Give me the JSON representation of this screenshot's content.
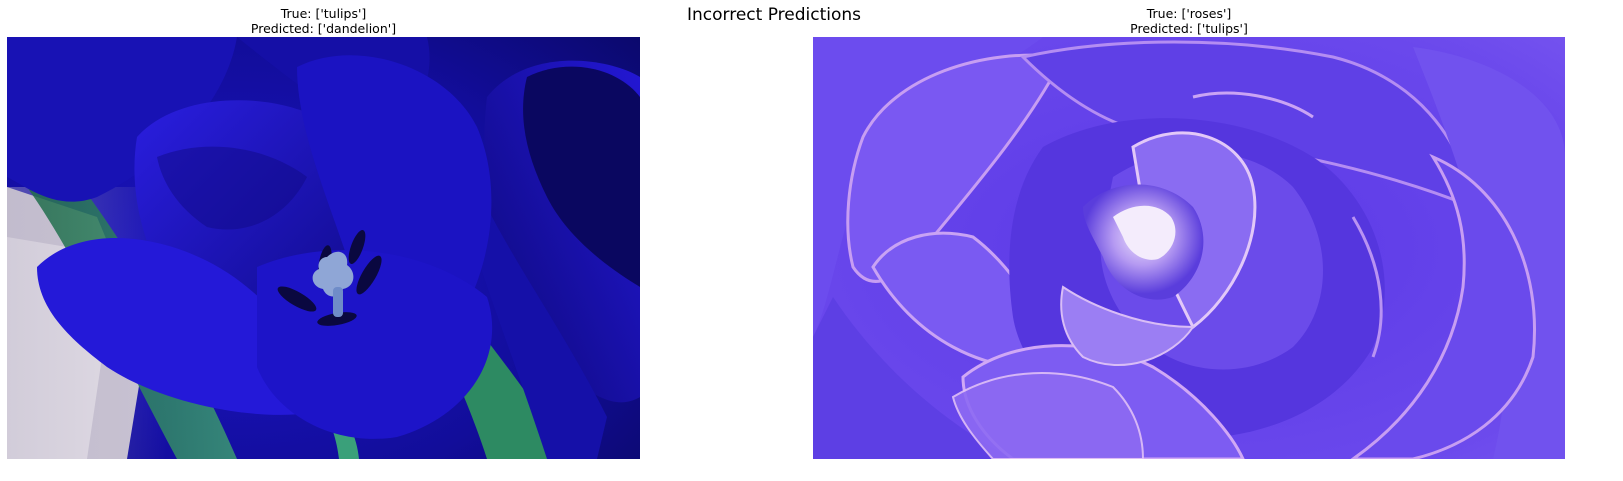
{
  "figure": {
    "suptitle": "Incorrect Predictions"
  },
  "panels": [
    {
      "true_label": "True: ['tulips']",
      "predicted_label": "Predicted: ['dandelion']",
      "image": {
        "subject": "tulip close-up",
        "dominant_colors": [
          "#1a12c8",
          "#0d0a7a",
          "#2a7a5a",
          "#c9c4d6"
        ]
      }
    },
    {
      "true_label": "True: ['roses']",
      "predicted_label": "Predicted: ['tulips']",
      "image": {
        "subject": "rose close-up",
        "dominant_colors": [
          "#6e4cf0",
          "#4a2fd6",
          "#b98ef0",
          "#e6d8fa"
        ]
      }
    }
  ]
}
